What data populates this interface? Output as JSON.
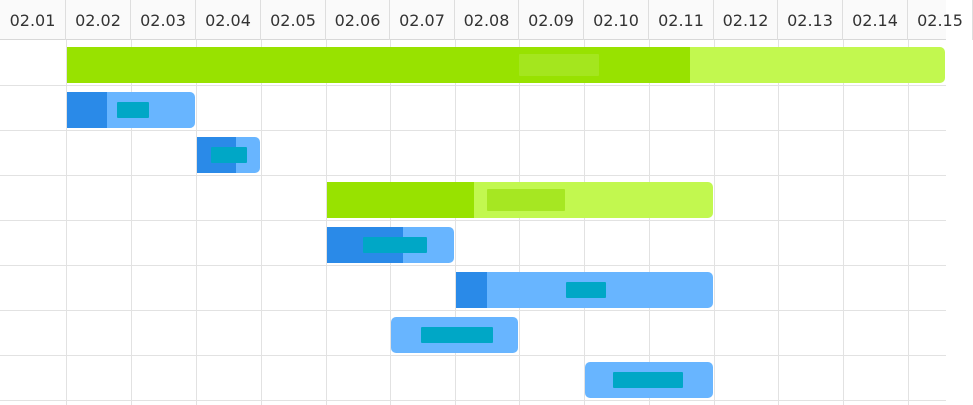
{
  "timeline": {
    "days": [
      "02.01",
      "02.02",
      "02.03",
      "02.04",
      "02.05",
      "02.06",
      "02.07",
      "02.08",
      "02.09",
      "02.10",
      "02.11",
      "02.12",
      "02.13",
      "02.14",
      "02.15"
    ]
  },
  "colors": {
    "project_bar": "#c2f84f",
    "project_progress": "#98e200",
    "task_bar": "#68b5ff",
    "task_progress": "#2a8ae8",
    "task_label_block": "#00a7c6"
  },
  "tasks": [
    {
      "type": "project",
      "start_day": "02.02",
      "end_day": "02.15",
      "progress": 0.71
    },
    {
      "type": "task",
      "start_day": "02.02",
      "end_day": "02.03",
      "progress": 0.31
    },
    {
      "type": "task",
      "start_day": "02.04",
      "end_day": "02.04",
      "progress": 0.62
    },
    {
      "type": "project",
      "start_day": "02.06",
      "end_day": "02.11",
      "progress": 0.38
    },
    {
      "type": "task",
      "start_day": "02.06",
      "end_day": "02.07",
      "progress": 0.6
    },
    {
      "type": "task",
      "start_day": "02.08",
      "end_day": "02.11",
      "progress": 0.12
    },
    {
      "type": "task",
      "start_day": "02.07",
      "end_day": "02.08",
      "progress": 0.0
    },
    {
      "type": "task",
      "start_day": "02.10",
      "end_day": "02.11",
      "progress": 0.0
    }
  ]
}
